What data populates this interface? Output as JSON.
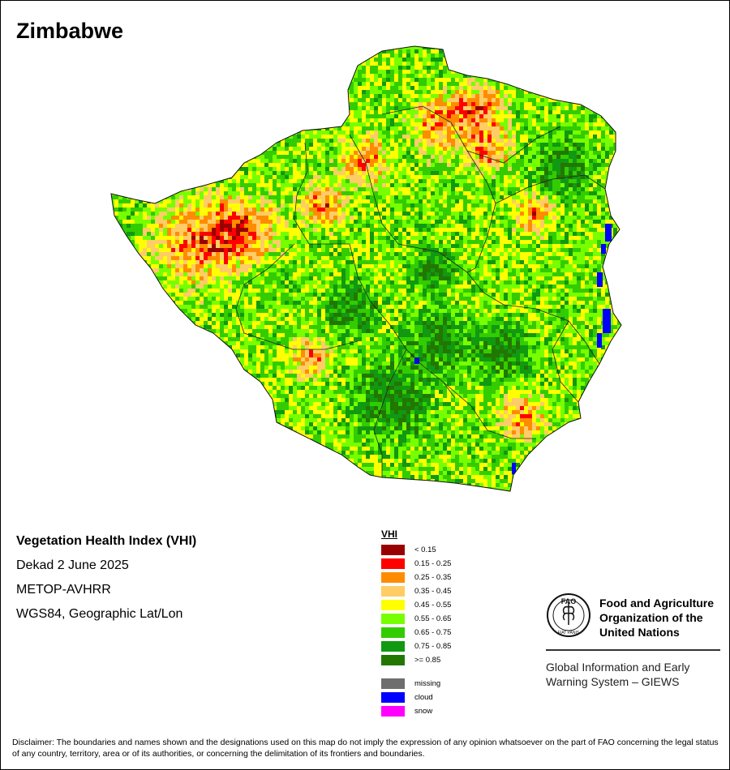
{
  "title": "Zimbabwe",
  "info": {
    "product": "Vegetation Health Index (VHI)",
    "period": "Dekad 2 June 2025",
    "sensor": "METOP-AVHRR",
    "projection": "WGS84, Geographic Lat/Lon"
  },
  "legend": {
    "title": "VHI",
    "classes": [
      {
        "label": "< 0.15",
        "color": "#990000"
      },
      {
        "label": "0.15 - 0.25",
        "color": "#ff0000"
      },
      {
        "label": "0.25 - 0.35",
        "color": "#ff8c00"
      },
      {
        "label": "0.35 - 0.45",
        "color": "#ffcc66"
      },
      {
        "label": "0.45 - 0.55",
        "color": "#ffff00"
      },
      {
        "label": "0.55 - 0.65",
        "color": "#77ff00"
      },
      {
        "label": "0.65 - 0.75",
        "color": "#33cc00"
      },
      {
        "label": "0.75 - 0.85",
        "color": "#119911"
      },
      {
        "label": ">= 0.85",
        "color": "#227700"
      }
    ],
    "special": [
      {
        "label": "missing",
        "color": "#6e6e6e"
      },
      {
        "label": "cloud",
        "color": "#0000ff"
      },
      {
        "label": "snow",
        "color": "#ff00ff"
      }
    ]
  },
  "organization": {
    "name_lines": [
      "Food and Agriculture",
      "Organization of the",
      "United Nations"
    ],
    "emblem_text": "FAO",
    "emblem_motto": "FIAT PANIS",
    "system_lines": [
      "Global Information and Early",
      "Warning System – GIEWS"
    ]
  },
  "disclaimer": "Disclaimer: The boundaries and names shown and the designations used on this map do not imply the expression of any opinion whatsoever on the part of FAO concerning the legal status of any country, territory, area or of its authorities, or concerning the delimitation of its frontiers and boundaries."
}
